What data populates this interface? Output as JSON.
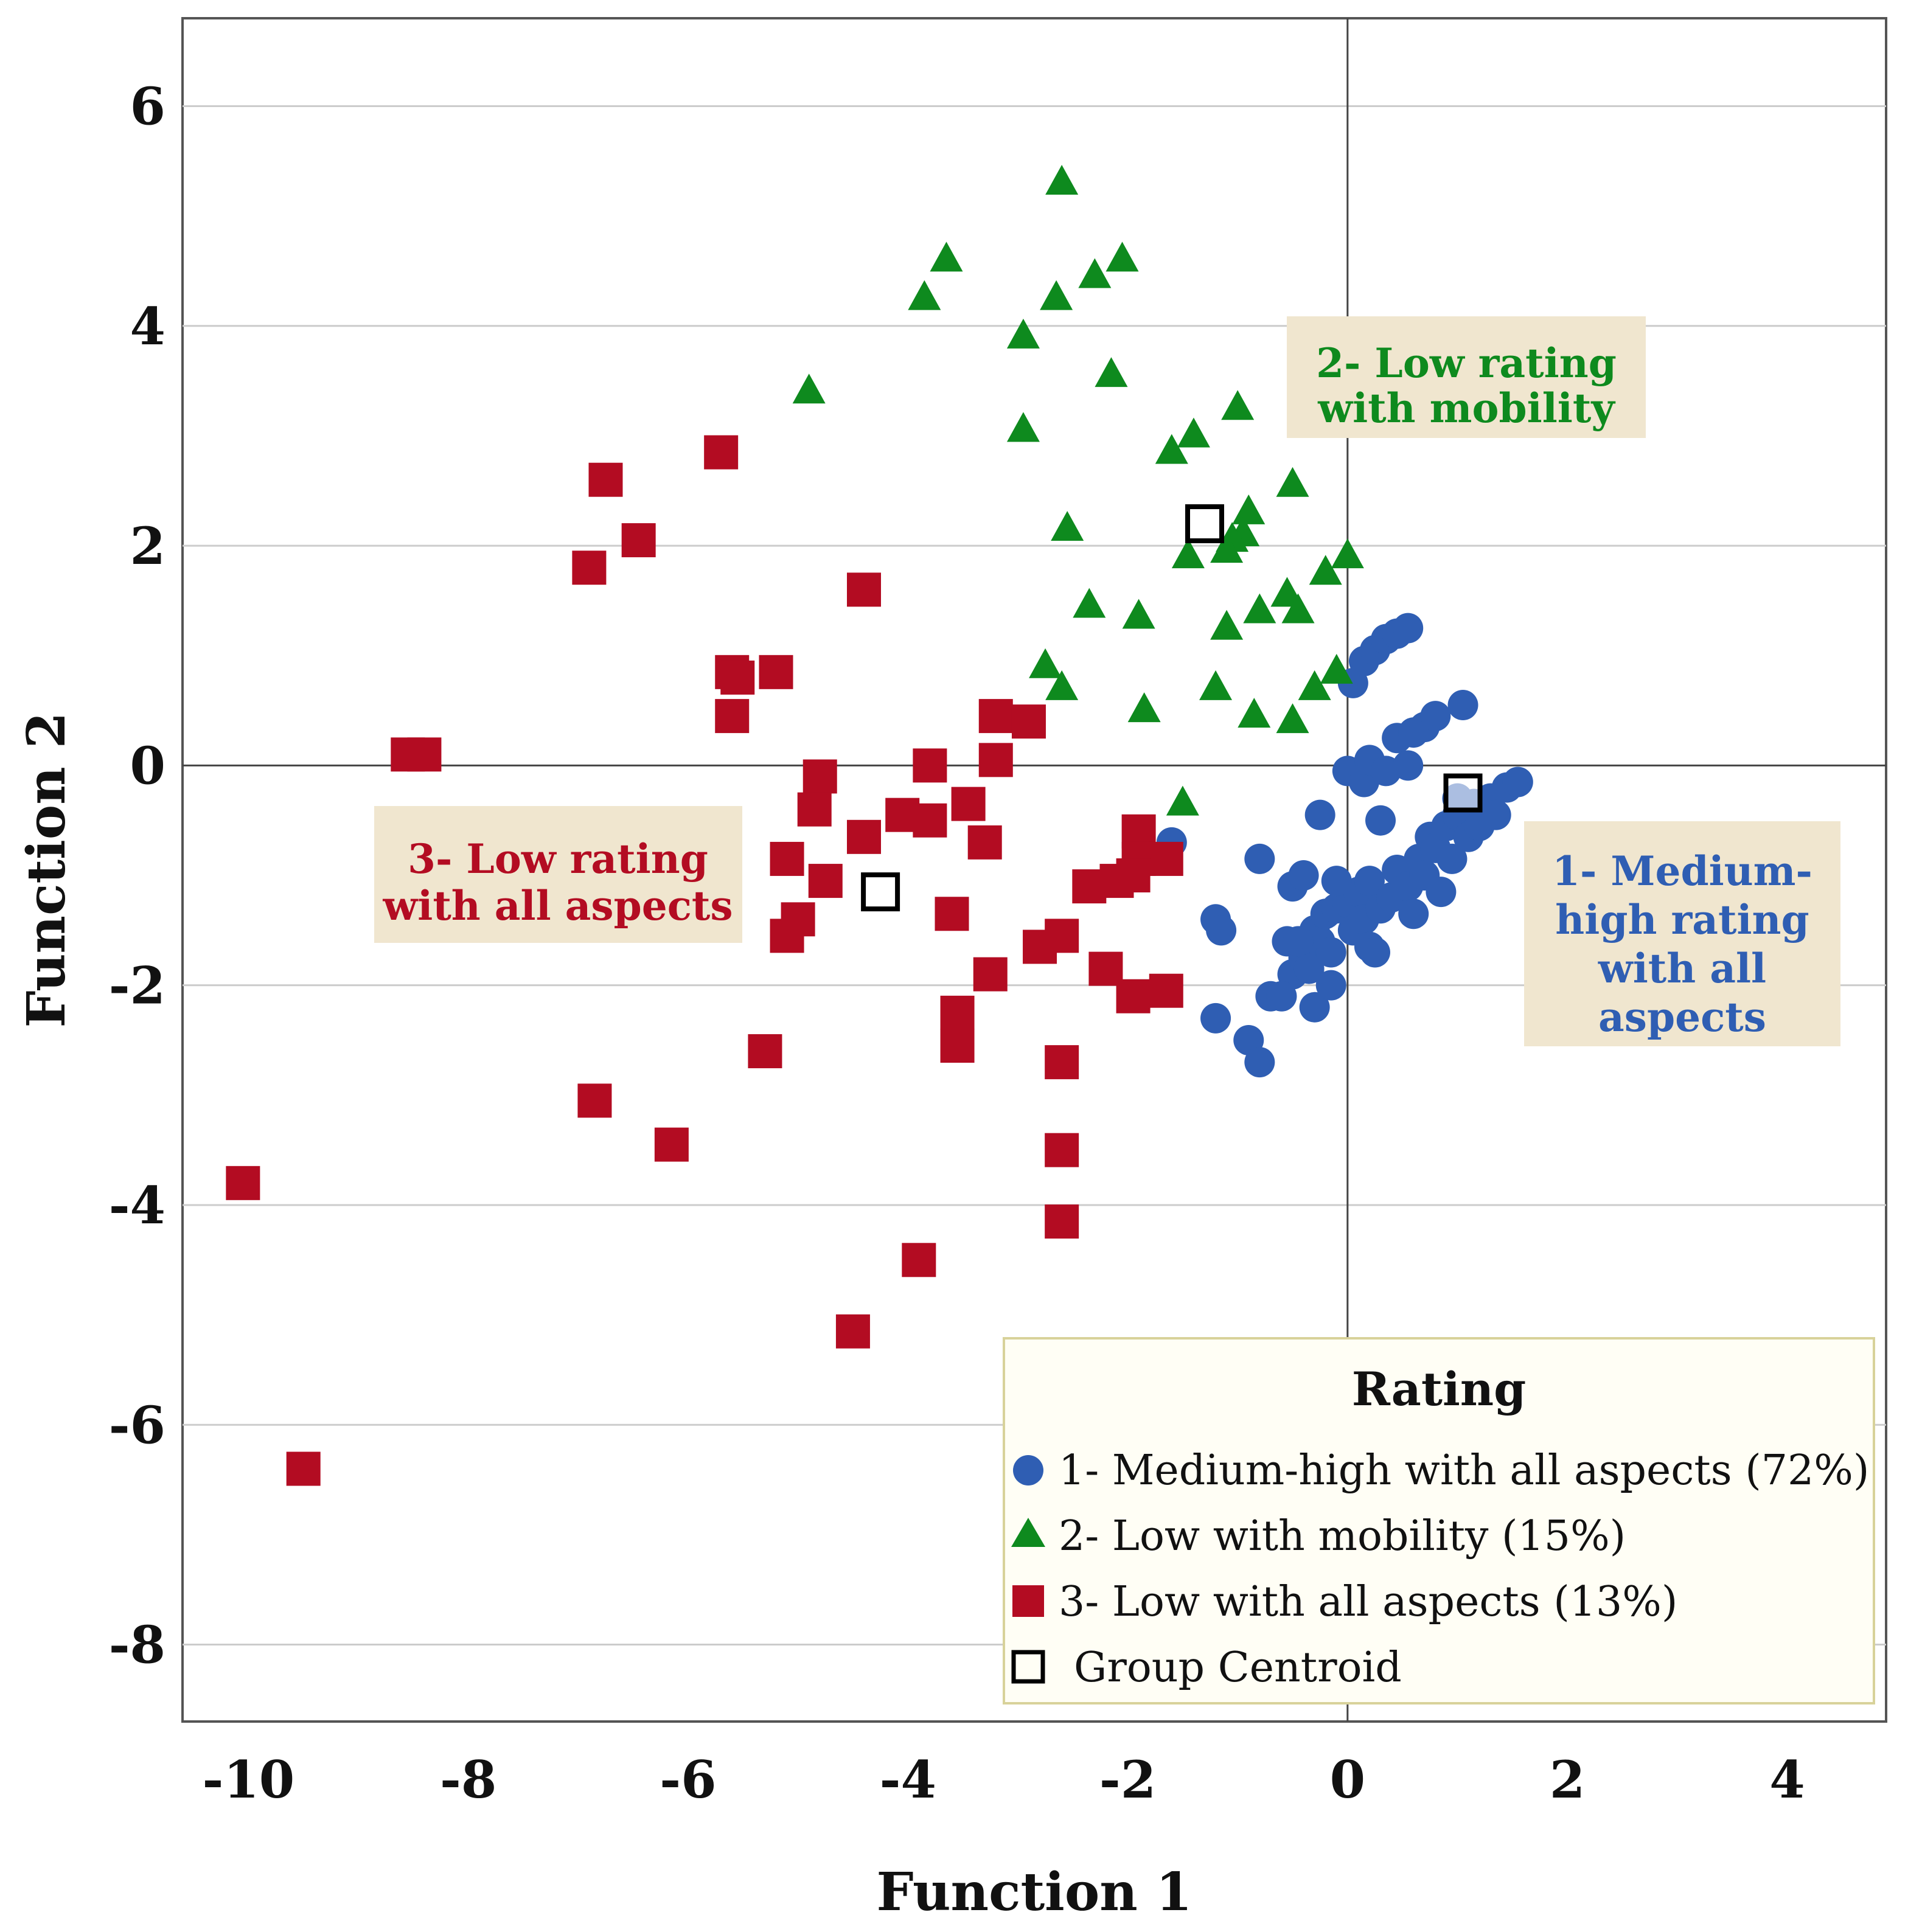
{
  "chart_data": {
    "type": "scatter",
    "xlabel": "Function 1",
    "ylabel": "Function 2",
    "xlim": [
      -10.6,
      4.9
    ],
    "ylim": [
      -8.7,
      6.8
    ],
    "xticks": [
      -10,
      -8,
      -6,
      -4,
      -2,
      0,
      2,
      4
    ],
    "yticks": [
      -8,
      -6,
      -4,
      -2,
      0,
      2,
      4,
      6
    ],
    "grid": "horizontal",
    "colors": {
      "g1": "#2f5eb3",
      "g2": "#0e8a1e",
      "g3": "#b30c22",
      "centroid": "#000000",
      "annotation_bg": "#f0e6cf"
    },
    "legend": {
      "title": "Rating",
      "position": "bottom-right",
      "items": [
        {
          "label": "1- Medium-high with all aspects (72%)",
          "marker": "circle",
          "color": "#2f5eb3"
        },
        {
          "label": "2- Low with mobility (15%)",
          "marker": "triangle",
          "color": "#0e8a1e"
        },
        {
          "label": "3- Low with all aspects (13%)",
          "marker": "square",
          "color": "#b30c22"
        },
        {
          "label": "Group Centroid",
          "marker": "open-square",
          "color": "#000000"
        }
      ]
    },
    "annotations": [
      {
        "lines": [
          "2- Low rating",
          "with mobility"
        ],
        "color": "#0e8a1e"
      },
      {
        "lines": [
          "3- Low rating",
          "with all aspects"
        ],
        "color": "#b30c22"
      },
      {
        "lines": [
          "1- Medium-",
          "high rating",
          "with all",
          "aspects"
        ],
        "color": "#2f5eb3"
      }
    ],
    "series": [
      {
        "name": "1- Medium-high with all aspects (72%)",
        "marker": "circle",
        "points": [
          [
            -1.6,
            -0.7
          ],
          [
            -1.2,
            -1.4
          ],
          [
            -1.15,
            -1.5
          ],
          [
            -1.2,
            -2.3
          ],
          [
            -0.9,
            -2.5
          ],
          [
            -0.8,
            -2.7
          ],
          [
            -0.8,
            -0.85
          ],
          [
            -0.5,
            -1.1
          ],
          [
            -0.4,
            -1.0
          ],
          [
            -0.7,
            -2.1
          ],
          [
            -0.5,
            -1.9
          ],
          [
            -0.3,
            -2.2
          ],
          [
            -0.55,
            -1.6
          ],
          [
            -0.4,
            -1.75
          ],
          [
            -0.3,
            -1.5
          ],
          [
            -0.25,
            -1.6
          ],
          [
            -0.35,
            -1.85
          ],
          [
            -0.2,
            -1.35
          ],
          [
            -0.15,
            -1.7
          ],
          [
            -0.1,
            -1.3
          ],
          [
            0.0,
            -1.25
          ],
          [
            0.05,
            -1.5
          ],
          [
            0.1,
            -1.15
          ],
          [
            0.15,
            -1.4
          ],
          [
            0.2,
            -1.65
          ],
          [
            0.2,
            -1.05
          ],
          [
            0.3,
            -1.3
          ],
          [
            0.4,
            -1.2
          ],
          [
            0.45,
            -0.95
          ],
          [
            0.55,
            -1.1
          ],
          [
            0.6,
            -1.35
          ],
          [
            0.65,
            -0.85
          ],
          [
            0.7,
            -1.0
          ],
          [
            0.75,
            -0.65
          ],
          [
            0.8,
            -0.75
          ],
          [
            0.85,
            -1.15
          ],
          [
            0.9,
            -0.55
          ],
          [
            0.95,
            -0.85
          ],
          [
            1.0,
            -0.45
          ],
          [
            1.1,
            -0.65
          ],
          [
            1.15,
            -0.35
          ],
          [
            1.2,
            -0.55
          ],
          [
            1.3,
            -0.3
          ],
          [
            1.35,
            -0.45
          ],
          [
            1.45,
            -0.2
          ],
          [
            1.55,
            -0.15
          ],
          [
            -0.25,
            -0.45
          ],
          [
            0.0,
            -0.05
          ],
          [
            0.15,
            -0.15
          ],
          [
            0.2,
            0.05
          ],
          [
            0.35,
            -0.05
          ],
          [
            0.45,
            0.25
          ],
          [
            0.55,
            0.0
          ],
          [
            0.6,
            0.3
          ],
          [
            0.7,
            0.35
          ],
          [
            0.8,
            0.45
          ],
          [
            1.05,
            0.55
          ],
          [
            0.05,
            0.75
          ],
          [
            0.15,
            0.95
          ],
          [
            0.25,
            1.05
          ],
          [
            0.35,
            1.15
          ],
          [
            0.45,
            1.2
          ],
          [
            0.55,
            1.25
          ],
          [
            -0.1,
            -1.05
          ],
          [
            0.3,
            -0.5
          ],
          [
            -0.45,
            -1.6
          ],
          [
            -0.15,
            -2.0
          ],
          [
            -0.6,
            -2.1
          ],
          [
            1.0,
            -0.3
          ],
          [
            0.25,
            -1.7
          ]
        ]
      },
      {
        "name": "2- Low with mobility (15%)",
        "marker": "triangle",
        "points": [
          [
            -2.6,
            5.3
          ],
          [
            -3.65,
            4.6
          ],
          [
            -2.05,
            4.6
          ],
          [
            -2.3,
            4.45
          ],
          [
            -3.85,
            4.25
          ],
          [
            -2.65,
            4.25
          ],
          [
            -2.95,
            3.9
          ],
          [
            -2.15,
            3.55
          ],
          [
            -4.9,
            3.4
          ],
          [
            -1.0,
            3.25
          ],
          [
            -2.95,
            3.05
          ],
          [
            -1.4,
            3.0
          ],
          [
            -1.6,
            2.85
          ],
          [
            -0.5,
            2.55
          ],
          [
            -0.9,
            2.3
          ],
          [
            -2.55,
            2.15
          ],
          [
            -0.95,
            2.1
          ],
          [
            -1.05,
            2.05
          ],
          [
            -1.45,
            1.9
          ],
          [
            -1.1,
            1.95
          ],
          [
            0.0,
            1.9
          ],
          [
            -0.2,
            1.75
          ],
          [
            -2.35,
            1.45
          ],
          [
            -0.55,
            1.55
          ],
          [
            -0.45,
            1.4
          ],
          [
            -0.8,
            1.4
          ],
          [
            -1.9,
            1.35
          ],
          [
            -1.1,
            1.25
          ],
          [
            -2.75,
            0.9
          ],
          [
            -0.1,
            0.85
          ],
          [
            -2.6,
            0.7
          ],
          [
            -1.2,
            0.7
          ],
          [
            -0.3,
            0.7
          ],
          [
            -1.85,
            0.5
          ],
          [
            -0.85,
            0.45
          ],
          [
            -0.5,
            0.4
          ],
          [
            -1.5,
            -0.35
          ]
        ]
      },
      {
        "name": "3- Low with all aspects (13%)",
        "marker": "square",
        "points": [
          [
            -5.7,
            2.85
          ],
          [
            -6.75,
            2.6
          ],
          [
            -6.45,
            2.05
          ],
          [
            -6.9,
            1.8
          ],
          [
            -4.4,
            1.6
          ],
          [
            -5.6,
            0.85
          ],
          [
            -5.55,
            0.8
          ],
          [
            -5.2,
            0.85
          ],
          [
            -5.6,
            0.45
          ],
          [
            -8.55,
            0.1
          ],
          [
            -8.4,
            0.1
          ],
          [
            -3.2,
            0.45
          ],
          [
            -2.9,
            0.4
          ],
          [
            -3.2,
            0.05
          ],
          [
            -4.8,
            -0.1
          ],
          [
            -3.8,
            0.0
          ],
          [
            -4.85,
            -0.4
          ],
          [
            -4.4,
            -0.65
          ],
          [
            -4.05,
            -0.45
          ],
          [
            -3.8,
            -0.5
          ],
          [
            -3.45,
            -0.35
          ],
          [
            -3.3,
            -0.7
          ],
          [
            -1.9,
            -0.6
          ],
          [
            -1.9,
            -0.85
          ],
          [
            -1.65,
            -0.85
          ],
          [
            -1.95,
            -1.0
          ],
          [
            -2.1,
            -1.05
          ],
          [
            -2.35,
            -1.1
          ],
          [
            -5.1,
            -0.85
          ],
          [
            -4.75,
            -1.05
          ],
          [
            -5.0,
            -1.4
          ],
          [
            -5.1,
            -1.55
          ],
          [
            -3.6,
            -1.35
          ],
          [
            -2.6,
            -1.55
          ],
          [
            -2.8,
            -1.65
          ],
          [
            -2.2,
            -1.85
          ],
          [
            -1.95,
            -2.1
          ],
          [
            -1.65,
            -2.05
          ],
          [
            -3.25,
            -1.9
          ],
          [
            -3.55,
            -2.25
          ],
          [
            -3.55,
            -2.55
          ],
          [
            -5.3,
            -2.6
          ],
          [
            -2.6,
            -2.7
          ],
          [
            -6.85,
            -3.05
          ],
          [
            -6.15,
            -3.45
          ],
          [
            -2.6,
            -3.5
          ],
          [
            -10.05,
            -3.8
          ],
          [
            -2.6,
            -4.15
          ],
          [
            -3.9,
            -4.5
          ],
          [
            -4.5,
            -5.15
          ],
          [
            -9.5,
            -6.4
          ]
        ]
      }
    ],
    "centroids": [
      [
        1.05,
        -0.25
      ],
      [
        -1.3,
        2.2
      ],
      [
        -4.25,
        -1.15
      ]
    ]
  }
}
